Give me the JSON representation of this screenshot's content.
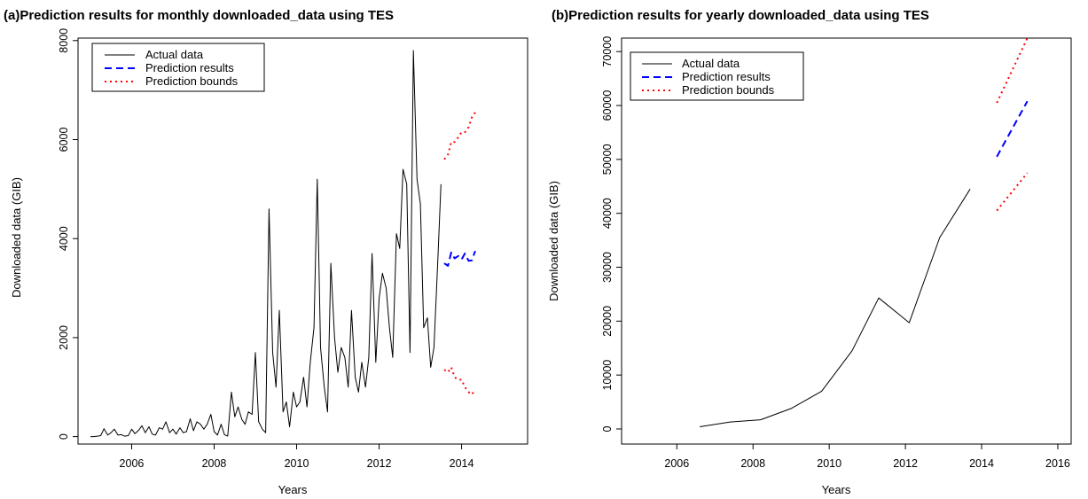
{
  "chart_data": [
    {
      "type": "line",
      "title": "(a)Prediction results for monthly downloaded_data using TES",
      "xlabel": "Years",
      "ylabel": "Downloaded data (GIB)",
      "xlim": [
        2004.7,
        2015.6
      ],
      "ylim": [
        -150,
        8050
      ],
      "x_ticks": [
        2006,
        2008,
        2010,
        2012,
        2014
      ],
      "y_ticks": [
        0,
        2000,
        4000,
        6000,
        8000
      ],
      "grid": false,
      "legend_position": "top-left",
      "legend": [
        "Actual data",
        "Prediction results",
        "Prediction bounds"
      ],
      "series": [
        {
          "name": "Actual data",
          "color": "#000000",
          "style": "solid",
          "x": [
            2005.0,
            2005.08,
            2005.17,
            2005.25,
            2005.33,
            2005.42,
            2005.5,
            2005.58,
            2005.67,
            2005.75,
            2005.83,
            2005.92,
            2006.0,
            2006.08,
            2006.17,
            2006.25,
            2006.33,
            2006.42,
            2006.5,
            2006.58,
            2006.67,
            2006.75,
            2006.83,
            2006.92,
            2007.0,
            2007.08,
            2007.17,
            2007.25,
            2007.33,
            2007.42,
            2007.5,
            2007.58,
            2007.67,
            2007.75,
            2007.83,
            2007.92,
            2008.0,
            2008.08,
            2008.17,
            2008.25,
            2008.33,
            2008.42,
            2008.5,
            2008.58,
            2008.67,
            2008.75,
            2008.83,
            2008.92,
            2009.0,
            2009.08,
            2009.17,
            2009.25,
            2009.33,
            2009.42,
            2009.5,
            2009.58,
            2009.67,
            2009.75,
            2009.83,
            2009.92,
            2010.0,
            2010.08,
            2010.17,
            2010.25,
            2010.33,
            2010.42,
            2010.5,
            2010.58,
            2010.67,
            2010.75,
            2010.83,
            2010.92,
            2011.0,
            2011.08,
            2011.17,
            2011.25,
            2011.33,
            2011.42,
            2011.5,
            2011.58,
            2011.67,
            2011.75,
            2011.83,
            2011.92,
            2012.0,
            2012.08,
            2012.17,
            2012.25,
            2012.33,
            2012.42,
            2012.5,
            2012.58,
            2012.67,
            2012.75,
            2012.83,
            2012.92,
            2013.0,
            2013.08,
            2013.17,
            2013.25,
            2013.33,
            2013.42,
            2013.5
          ],
          "values": [
            0,
            0,
            10,
            20,
            160,
            30,
            80,
            150,
            30,
            40,
            10,
            20,
            150,
            60,
            130,
            220,
            80,
            200,
            50,
            30,
            180,
            150,
            300,
            80,
            150,
            50,
            180,
            80,
            100,
            360,
            120,
            300,
            250,
            150,
            250,
            450,
            100,
            30,
            250,
            40,
            10,
            900,
            400,
            600,
            350,
            250,
            500,
            450,
            1700,
            300,
            150,
            80,
            4600,
            1700,
            1000,
            2550,
            500,
            700,
            200,
            900,
            600,
            700,
            1200,
            600,
            1500,
            2200,
            5200,
            1800,
            1000,
            500,
            3500,
            2000,
            1300,
            1800,
            1600,
            1000,
            2550,
            1200,
            900,
            1500,
            1000,
            1600,
            3700,
            1500,
            2800,
            3300,
            3000,
            2200,
            1600,
            4100,
            3800,
            5400,
            5100,
            1700,
            7800,
            5200,
            4700,
            2200,
            2400,
            1400,
            1800,
            3500,
            5100
          ]
        },
        {
          "name": "Prediction results",
          "color": "#0000ff",
          "style": "dashed",
          "x": [
            2013.58,
            2013.67,
            2013.75,
            2013.83,
            2013.92,
            2014.0,
            2014.08,
            2014.17,
            2014.25,
            2014.33
          ],
          "values": [
            3500,
            3450,
            3720,
            3600,
            3650,
            3580,
            3700,
            3550,
            3560,
            3750
          ]
        },
        {
          "name": "Prediction bounds",
          "color": "#ff0000",
          "style": "dotted",
          "x": [
            2013.58,
            2013.67,
            2013.75,
            2013.83,
            2013.92,
            2014.0,
            2014.08,
            2014.17,
            2014.25,
            2014.33
          ],
          "values": [
            5600,
            5700,
            5950,
            5950,
            6050,
            6150,
            6150,
            6250,
            6450,
            6550
          ]
        },
        {
          "name": "Prediction bounds",
          "color": "#ff0000",
          "style": "dotted",
          "x": [
            2013.58,
            2013.67,
            2013.75,
            2013.83,
            2013.92,
            2014.0,
            2014.08,
            2014.17,
            2014.25,
            2014.33
          ],
          "values": [
            1350,
            1300,
            1400,
            1200,
            1150,
            1150,
            1000,
            900,
            850,
            950
          ]
        }
      ]
    },
    {
      "type": "line",
      "title": "(b)Prediction results for yearly downloaded_data using TES",
      "xlabel": "Years",
      "ylabel": "Downloaded data (GIB)",
      "xlim": [
        2004.55,
        2016.35
      ],
      "ylim": [
        -2800,
        72500
      ],
      "x_ticks": [
        2006,
        2008,
        2010,
        2012,
        2014,
        2016
      ],
      "y_ticks": [
        0,
        10000,
        20000,
        30000,
        40000,
        50000,
        60000,
        70000
      ],
      "grid": false,
      "legend_position": "top-left",
      "legend": [
        "Actual data",
        "Prediction results",
        "Prediction bounds"
      ],
      "series": [
        {
          "name": "Actual data",
          "color": "#000000",
          "style": "solid",
          "x": [
            2006.6,
            2007.4,
            2008.2,
            2009.0,
            2009.8,
            2010.6,
            2011.3,
            2012.1,
            2012.9,
            2013.7
          ],
          "values": [
            400,
            1300,
            1700,
            3800,
            7000,
            14500,
            24300,
            19700,
            35500,
            44500
          ]
        },
        {
          "name": "Prediction results",
          "color": "#0000ff",
          "style": "dashed",
          "x": [
            2014.4,
            2015.2
          ],
          "values": [
            50500,
            60800
          ]
        },
        {
          "name": "Prediction bounds",
          "color": "#ff0000",
          "style": "dotted",
          "x": [
            2014.4,
            2015.2
          ],
          "values": [
            60500,
            72500
          ]
        },
        {
          "name": "Prediction bounds",
          "color": "#ff0000",
          "style": "dotted",
          "x": [
            2014.4,
            2015.2
          ],
          "values": [
            40500,
            47500
          ]
        }
      ]
    }
  ]
}
